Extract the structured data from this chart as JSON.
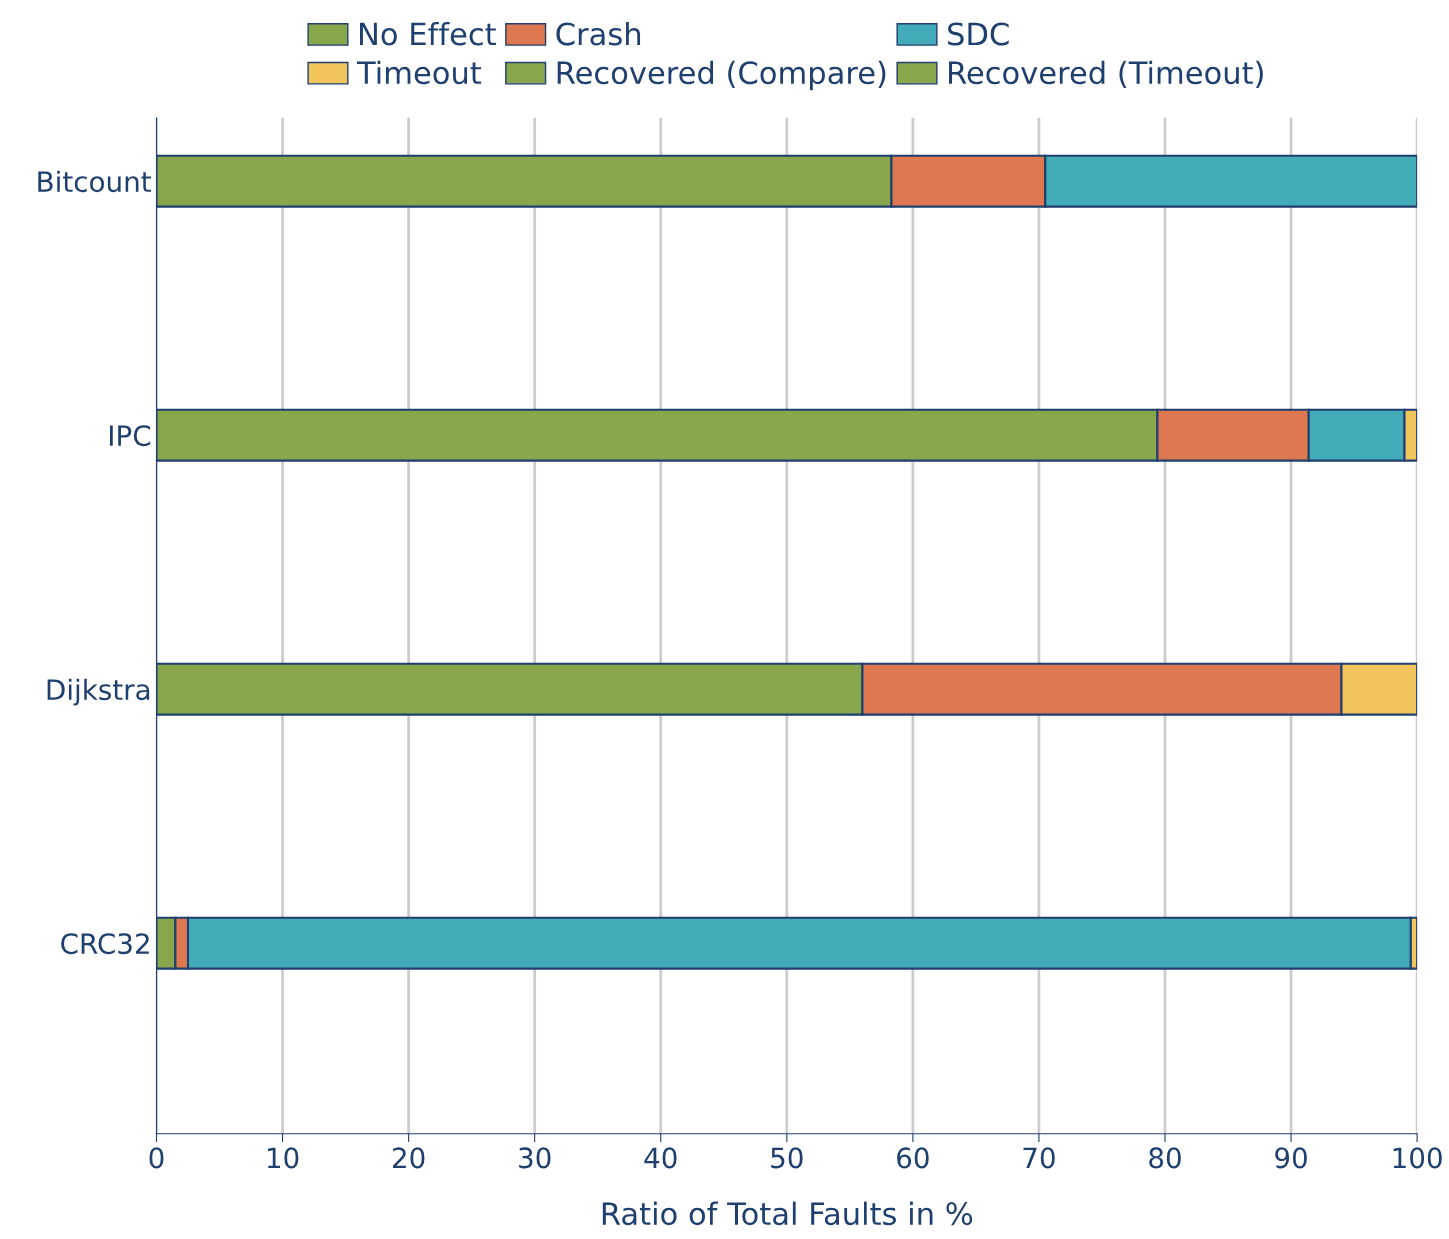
{
  "chart_data": {
    "type": "bar",
    "orientation": "horizontal",
    "stacked": true,
    "categories": [
      "Bitcount",
      "IPC",
      "Dijkstra",
      "CRC32"
    ],
    "series": [
      {
        "name": "No Effect",
        "color": "#88a64c",
        "values": [
          58.3,
          79.4,
          56.0,
          1.5
        ]
      },
      {
        "name": "Crash",
        "color": "#de7850",
        "values": [
          12.2,
          12.0,
          38.0,
          1.0
        ]
      },
      {
        "name": "SDC",
        "color": "#43abb8",
        "values": [
          29.5,
          7.6,
          null,
          97.0
        ]
      },
      {
        "name": "Timeout",
        "color": "#f2c45c",
        "values": [
          null,
          1.0,
          6.0,
          0.5
        ]
      },
      {
        "name": "Recovered (Compare)",
        "color": "#88a64c",
        "values": [
          null,
          null,
          null,
          null
        ]
      },
      {
        "name": "Recovered (Timeout)",
        "color": "#88a64c",
        "values": [
          null,
          null,
          null,
          null
        ]
      }
    ],
    "xlim": [
      0,
      100
    ],
    "xticks": [
      0,
      10,
      20,
      30,
      40,
      50,
      60,
      70,
      80,
      90,
      100
    ],
    "xlabel": "Ratio of Total Faults in %",
    "grid": "x",
    "legend": "top"
  }
}
